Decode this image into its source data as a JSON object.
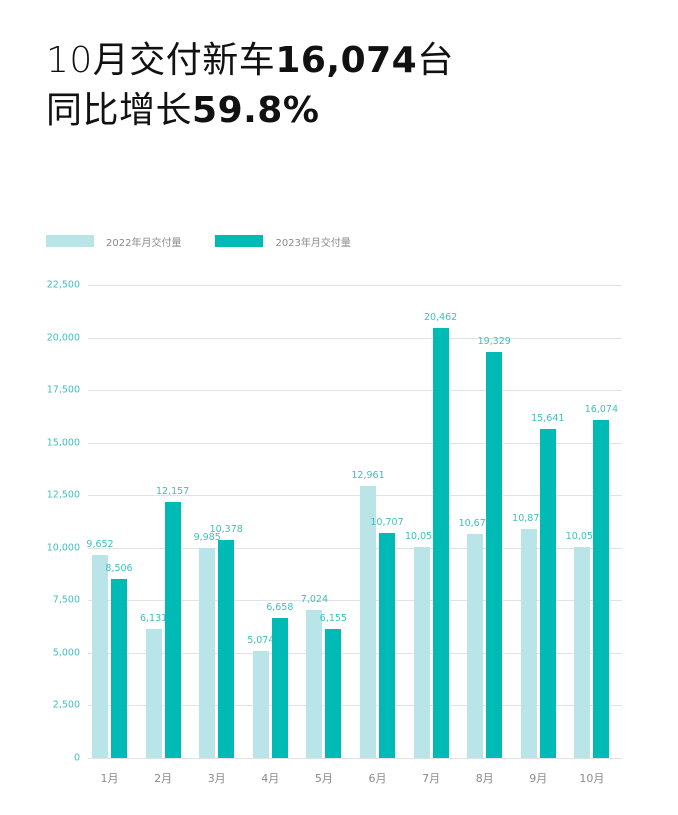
{
  "headline": {
    "line1_prefix": "10月交付新车",
    "line1_value": "16,074",
    "line1_suffix": "台",
    "line2_prefix": "同比增长",
    "line2_value": "59.8%"
  },
  "legend": [
    {
      "label": "2022年月交付量",
      "color": "#b9e4e8"
    },
    {
      "label": "2023年月交付量",
      "color": "#00bab6"
    }
  ],
  "chart_data": {
    "type": "bar",
    "title": "10月交付新车16,074台 同比增长59.8%",
    "xlabel": "",
    "ylabel": "",
    "categories": [
      "1月",
      "2月",
      "3月",
      "4月",
      "5月",
      "6月",
      "7月",
      "8月",
      "9月",
      "10月"
    ],
    "series": [
      {
        "name": "2022年月交付量",
        "color": "#b9e4e8",
        "values": [
          9652,
          6131,
          9985,
          5074,
          7024,
          12961,
          10052,
          10677,
          10878,
          10059
        ]
      },
      {
        "name": "2023年月交付量",
        "color": "#00bab6",
        "values": [
          8506,
          12157,
          10378,
          6658,
          6155,
          10707,
          20462,
          19329,
          15641,
          16074
        ]
      }
    ],
    "value_labels": {
      "2022": [
        "9,652",
        "6,131",
        "9,985",
        "5,074",
        "7,024",
        "12,961",
        "10,052",
        "10,677",
        "10,878",
        "10,059"
      ],
      "2023": [
        "8,506",
        "12,157",
        "10,378",
        "6,658",
        "6,155",
        "10,707",
        "20,462",
        "19,329",
        "15,641",
        "16,074"
      ]
    },
    "yticks": [
      "0",
      "2,500",
      "5,000",
      "7,500",
      "10,000",
      "12,500",
      "15,000",
      "17,500",
      "20,000",
      "22,500"
    ],
    "ylim": [
      0,
      22500
    ],
    "grid": true,
    "legend_position": "top-left"
  }
}
